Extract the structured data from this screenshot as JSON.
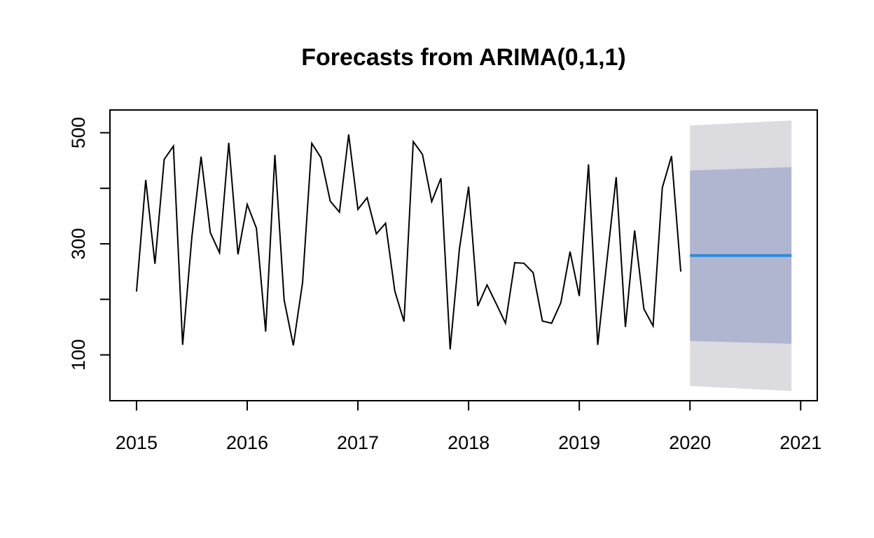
{
  "chart_data": {
    "type": "line",
    "title": "Forecasts from ARIMA(0,1,1)",
    "xlabel": "",
    "ylabel": "",
    "xlim": [
      2014.76,
      2021.15
    ],
    "ylim": [
      17.5,
      541
    ],
    "x_ticks": [
      2015,
      2016,
      2017,
      2018,
      2019,
      2020,
      2021
    ],
    "y_ticks": [
      100,
      200,
      300,
      400,
      500
    ],
    "y_tick_labels": [
      "100",
      "",
      "300",
      "",
      "500"
    ],
    "grid": false,
    "legend": "none",
    "series": [
      {
        "kind": "history",
        "start": 2015,
        "frequency": 12,
        "values": [
          214,
          415,
          264,
          452,
          476,
          118,
          312,
          457,
          320,
          284,
          482,
          281,
          371,
          328,
          142,
          460,
          199,
          117,
          230,
          481,
          455,
          377,
          357,
          497,
          362,
          383,
          318,
          337,
          215,
          160,
          484,
          461,
          376,
          418,
          110,
          290,
          403,
          188,
          226,
          192,
          157,
          266,
          265,
          248,
          161,
          157,
          194,
          286,
          206,
          443,
          118,
          270,
          420,
          150,
          324,
          183,
          152,
          401,
          458,
          250
        ]
      },
      {
        "kind": "point-forecast",
        "x": [
          2020.0,
          2020.917
        ],
        "values": [
          279,
          279
        ]
      }
    ],
    "intervals": [
      {
        "level": "95%",
        "x": [
          2020.0,
          2020.917
        ],
        "lower": [
          44,
          35
        ],
        "upper": [
          513,
          522
        ]
      },
      {
        "level": "80%",
        "x": [
          2020.0,
          2020.917
        ],
        "lower": [
          125,
          120
        ],
        "upper": [
          432,
          438
        ]
      }
    ],
    "colors": {
      "history": "#000000",
      "forecast": "#2b8bd8",
      "interval_95": "#dbdbe0",
      "interval_80": "#b0b5d0",
      "axis": "#000000"
    }
  }
}
